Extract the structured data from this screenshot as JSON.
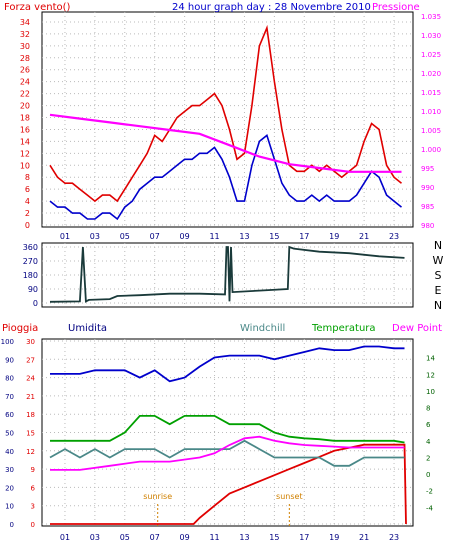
{
  "chart_data": [
    {
      "type": "line",
      "title": "24 hour graph day : 28 Novembre 2010",
      "left_label": "Forza vento()",
      "right_label": "Pressione",
      "x_ticks": [
        "01",
        "03",
        "05",
        "07",
        "09",
        "11",
        "13",
        "15",
        "17",
        "19",
        "21",
        "23"
      ],
      "y_left_ticks": [
        "0",
        "2",
        "4",
        "6",
        "8",
        "10",
        "12",
        "14",
        "16",
        "18",
        "20",
        "22",
        "24",
        "26",
        "28",
        "30",
        "32",
        "34"
      ],
      "y_right_ticks": [
        "980",
        "985",
        "990",
        "995",
        "1.000",
        "1.005",
        "1.010",
        "1.015",
        "1.020",
        "1.025",
        "1.030",
        "1.035"
      ],
      "ylim_left": [
        0,
        35
      ],
      "ylim_right": [
        980,
        1035
      ],
      "series": [
        {
          "color": "#e00000",
          "x": [
            0,
            0.5,
            1,
            1.5,
            2,
            2.5,
            3,
            3.5,
            4,
            4.5,
            5,
            5.5,
            6,
            6.5,
            7,
            7.5,
            8,
            8.5,
            9,
            9.5,
            10,
            10.5,
            11,
            11.5,
            12,
            12.5,
            13,
            13.5,
            14,
            14.5,
            15,
            15.5,
            16,
            16.5,
            17,
            17.5,
            18,
            18.5,
            19,
            19.5,
            20,
            20.5,
            21,
            21.5,
            22,
            22.5,
            23,
            23.5
          ],
          "values": [
            10,
            8,
            7,
            7,
            6,
            5,
            4,
            5,
            5,
            4,
            6,
            8,
            10,
            12,
            15,
            14,
            16,
            18,
            19,
            20,
            20,
            21,
            22,
            20,
            16,
            11,
            12,
            20,
            30,
            33,
            24,
            16,
            10,
            9,
            9,
            10,
            9,
            10,
            9,
            8,
            9,
            10,
            14,
            17,
            16,
            10,
            8,
            7
          ]
        },
        {
          "color": "#0000cc",
          "x": [
            0,
            0.5,
            1,
            1.5,
            2,
            2.5,
            3,
            3.5,
            4,
            4.5,
            5,
            5.5,
            6,
            6.5,
            7,
            7.5,
            8,
            8.5,
            9,
            9.5,
            10,
            10.5,
            11,
            11.5,
            12,
            12.5,
            13,
            13.5,
            14,
            14.5,
            15,
            15.5,
            16,
            16.5,
            17,
            17.5,
            18,
            18.5,
            19,
            19.5,
            20,
            20.5,
            21,
            21.5,
            22,
            22.5,
            23,
            23.5
          ],
          "values": [
            4,
            3,
            3,
            2,
            2,
            1,
            1,
            2,
            2,
            1,
            3,
            4,
            6,
            7,
            8,
            8,
            9,
            10,
            11,
            11,
            12,
            12,
            13,
            11,
            8,
            4,
            4,
            10,
            14,
            15,
            11,
            7,
            5,
            4,
            4,
            5,
            4,
            5,
            4,
            4,
            4,
            5,
            7,
            9,
            8,
            5,
            4,
            3
          ]
        },
        {
          "color": "#ff00ff",
          "x": [
            0,
            2,
            4,
            6,
            8,
            10,
            12,
            14,
            16,
            18,
            20,
            22,
            23.5
          ],
          "values": [
            1009,
            1008,
            1007,
            1006,
            1005,
            1004,
            1001,
            998,
            996,
            995,
            994,
            994,
            994
          ]
        }
      ]
    },
    {
      "type": "line",
      "y_ticks": [
        "0",
        "90",
        "180",
        "270",
        "360"
      ],
      "compass": [
        "N",
        "W",
        "S",
        "E",
        "N"
      ],
      "ylim": [
        0,
        360
      ],
      "series": [
        {
          "color": "#1a3a3a",
          "x": [
            0,
            2,
            2.2,
            2.4,
            2.6,
            4,
            4.5,
            6,
            8,
            10,
            11.7,
            11.8,
            11.9,
            12,
            12.1,
            12.2,
            14,
            15.9,
            16,
            16.3,
            18,
            20,
            22,
            23.7
          ],
          "values": [
            8,
            10,
            360,
            10,
            20,
            25,
            45,
            50,
            60,
            60,
            55,
            360,
            360,
            10,
            360,
            70,
            80,
            90,
            360,
            350,
            330,
            320,
            300,
            290
          ]
        }
      ]
    },
    {
      "type": "line",
      "legend": [
        "Pioggia",
        "Umidita",
        "Windchill",
        "Temperatura",
        "Dew Point"
      ],
      "y_pioggia_ticks": [
        "0",
        "3",
        "6",
        "9",
        "12",
        "15",
        "18",
        "21",
        "24",
        "27",
        "30"
      ],
      "y_umidita_ticks": [
        "0",
        "10",
        "20",
        "30",
        "40",
        "50",
        "60",
        "70",
        "80",
        "90",
        "100"
      ],
      "y_temp_ticks": [
        "-4",
        "-2",
        "0",
        "2",
        "4",
        "6",
        "8",
        "10",
        "12",
        "14"
      ],
      "annotations": [
        "sunrise",
        "sunset"
      ],
      "series": [
        {
          "name": "Pioggia",
          "color": "#e00000",
          "x": [
            0,
            2,
            4,
            6,
            8,
            9.6,
            10,
            11,
            12,
            13,
            14,
            15,
            16,
            17,
            18,
            19,
            20,
            21,
            22,
            23,
            23.7,
            23.8
          ],
          "values": [
            0,
            0,
            0,
            0,
            0,
            0,
            1,
            3,
            5,
            6,
            7,
            8,
            9,
            10,
            11,
            12,
            12.5,
            13,
            13,
            13,
            13,
            0
          ]
        },
        {
          "name": "Umidita",
          "color": "#0000cc",
          "x": [
            0,
            2,
            3,
            4,
            5,
            6,
            7,
            8,
            9,
            10,
            11,
            12,
            13,
            14,
            15,
            16,
            17,
            18,
            19,
            20,
            21,
            22,
            23,
            23.7
          ],
          "values": [
            82,
            82,
            84,
            84,
            84,
            80,
            84,
            78,
            80,
            86,
            91,
            92,
            92,
            92,
            90,
            92,
            94,
            96,
            95,
            95,
            97,
            97,
            96,
            96
          ]
        },
        {
          "name": "Windchill",
          "color": "#4a8888",
          "x": [
            0,
            1,
            2,
            3,
            4,
            5,
            6,
            7,
            8,
            9,
            10,
            11,
            12,
            13,
            14,
            15,
            16,
            17,
            18,
            19,
            20,
            21,
            22,
            23,
            23.7
          ],
          "values": [
            2,
            3,
            2,
            3,
            2,
            3,
            3,
            3,
            2,
            3,
            3,
            3,
            3,
            4,
            3,
            2,
            2,
            2,
            2,
            1,
            1,
            2,
            2,
            2,
            2
          ]
        },
        {
          "name": "Temperatura",
          "color": "#00a000",
          "x": [
            0,
            2,
            4,
            5,
            6,
            7,
            8,
            9,
            10,
            11,
            12,
            13,
            14,
            15,
            16,
            17,
            18,
            19,
            20,
            21,
            22,
            23,
            23.7
          ],
          "values": [
            4,
            4,
            4,
            5,
            7,
            7,
            6,
            7,
            7,
            7,
            6,
            6,
            6,
            5,
            4.5,
            4.3,
            4.2,
            4,
            4,
            4,
            4,
            4,
            3.8
          ]
        },
        {
          "name": "Dew Point",
          "color": "#ff00ff",
          "x": [
            0,
            2,
            4,
            6,
            8,
            10,
            11,
            12,
            13,
            14,
            15,
            16,
            17,
            18,
            19,
            20,
            21,
            22,
            23,
            23.7
          ],
          "values": [
            0.5,
            0.5,
            1,
            1.5,
            1.5,
            2,
            2.5,
            3.5,
            4.3,
            4.5,
            4,
            3.7,
            3.5,
            3.4,
            3.3,
            3.2,
            3.2,
            3.2,
            3.2,
            3.2
          ]
        }
      ]
    }
  ]
}
